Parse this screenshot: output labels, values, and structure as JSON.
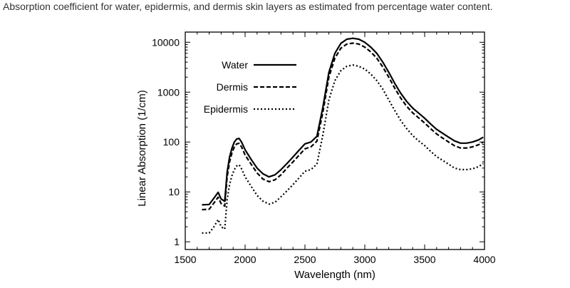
{
  "caption": "Absorption coefficient for water, epidermis, and dermis skin layers as estimated from percentage water content.",
  "chart_data": {
    "type": "line",
    "title": "",
    "xlabel": "Wavelength (nm)",
    "ylabel": "Linear Absorption (1/cm)",
    "xlim": [
      1500,
      4000
    ],
    "ylim": [
      0.7,
      16000
    ],
    "yscale": "log",
    "x_ticks": [
      1500,
      2000,
      2500,
      3000,
      3500,
      4000
    ],
    "x_tick_labels": [
      "1500",
      "2000",
      "2500",
      "3000",
      "3500",
      "4000"
    ],
    "y_ticks": [
      1,
      10,
      100,
      1000,
      10000
    ],
    "y_tick_labels": [
      "1",
      "10",
      "100",
      "1000",
      "10000"
    ],
    "grid": false,
    "legend_position": "top-left",
    "series": [
      {
        "name": "Water",
        "style": "solid",
        "color": "#000000",
        "x": [
          1640,
          1700,
          1740,
          1775,
          1800,
          1830,
          1850,
          1870,
          1890,
          1910,
          1930,
          1950,
          1970,
          2000,
          2050,
          2100,
          2150,
          2200,
          2250,
          2300,
          2350,
          2400,
          2450,
          2500,
          2550,
          2600,
          2650,
          2700,
          2750,
          2800,
          2850,
          2900,
          2950,
          3000,
          3050,
          3100,
          3150,
          3200,
          3250,
          3300,
          3350,
          3400,
          3450,
          3500,
          3550,
          3600,
          3650,
          3700,
          3750,
          3800,
          3850,
          3900,
          3950,
          3990
        ],
        "y": [
          5.5,
          5.6,
          7.5,
          9.8,
          7.2,
          6.5,
          25,
          50,
          75,
          100,
          115,
          118,
          100,
          70,
          45,
          30,
          23,
          20,
          22,
          28,
          37,
          50,
          68,
          92,
          100,
          130,
          500,
          2500,
          6000,
          9500,
          11500,
          12000,
          11500,
          10000,
          8000,
          6000,
          4000,
          2500,
          1500,
          950,
          650,
          480,
          380,
          300,
          230,
          180,
          150,
          125,
          105,
          95,
          95,
          100,
          110,
          125
        ]
      },
      {
        "name": "Dermis",
        "style": "dashed",
        "color": "#000000",
        "x": [
          1640,
          1700,
          1740,
          1775,
          1800,
          1830,
          1850,
          1870,
          1890,
          1910,
          1930,
          1950,
          1970,
          2000,
          2050,
          2100,
          2150,
          2200,
          2250,
          2300,
          2350,
          2400,
          2450,
          2500,
          2550,
          2600,
          2650,
          2700,
          2750,
          2800,
          2850,
          2900,
          2950,
          3000,
          3050,
          3100,
          3150,
          3200,
          3250,
          3300,
          3350,
          3400,
          3450,
          3500,
          3550,
          3600,
          3650,
          3700,
          3750,
          3800,
          3850,
          3900,
          3950,
          3990
        ],
        "y": [
          4.4,
          4.5,
          6,
          7.8,
          5.8,
          5.2,
          20,
          40,
          60,
          80,
          92,
          94,
          80,
          55,
          36,
          24,
          18,
          16,
          17.5,
          22,
          30,
          40,
          54,
          73,
          80,
          104,
          400,
          2000,
          4800,
          7600,
          9200,
          9600,
          9200,
          8000,
          6400,
          4800,
          3200,
          2000,
          1200,
          760,
          520,
          385,
          305,
          240,
          185,
          145,
          120,
          100,
          84,
          76,
          76,
          80,
          88,
          100
        ]
      },
      {
        "name": "Epidermis",
        "style": "dotted",
        "color": "#000000",
        "x": [
          1640,
          1700,
          1740,
          1775,
          1800,
          1830,
          1850,
          1870,
          1890,
          1910,
          1930,
          1950,
          1970,
          2000,
          2050,
          2100,
          2150,
          2200,
          2250,
          2300,
          2350,
          2400,
          2450,
          2500,
          2550,
          2600,
          2650,
          2700,
          2750,
          2800,
          2850,
          2900,
          2950,
          3000,
          3050,
          3100,
          3150,
          3200,
          3250,
          3300,
          3350,
          3400,
          3450,
          3500,
          3550,
          3600,
          3650,
          3700,
          3750,
          3800,
          3850,
          3900,
          3950,
          3990
        ],
        "y": [
          1.5,
          1.5,
          2,
          2.8,
          2,
          1.8,
          7,
          14,
          21,
          28,
          33,
          35,
          29,
          20,
          13,
          8.5,
          6.5,
          5.7,
          6.2,
          8,
          10.5,
          14,
          19,
          26,
          28,
          36,
          140,
          700,
          1700,
          2700,
          3300,
          3500,
          3300,
          2900,
          2300,
          1700,
          1150,
          700,
          430,
          270,
          185,
          135,
          105,
          85,
          65,
          51,
          43,
          36,
          30,
          28,
          28,
          29,
          32,
          37
        ]
      }
    ]
  }
}
